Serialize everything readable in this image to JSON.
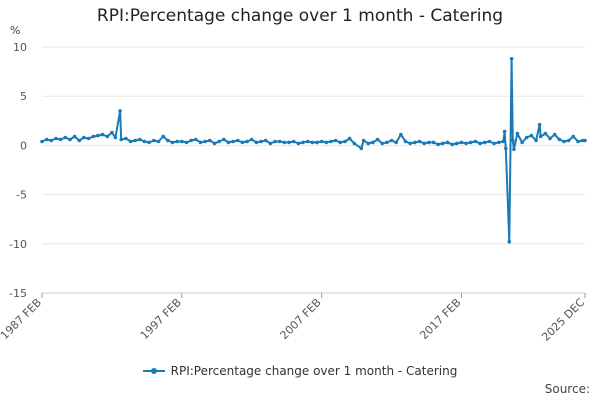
{
  "title": "RPI:Percentage change over 1 month - Catering",
  "unit_label": "%",
  "source_label": "Source:",
  "legend_label": "RPI:Percentage change over 1 month - Catering",
  "colors": {
    "series": "#1a7ab5",
    "grid": "#e6e6e6",
    "axis_text": "#555555"
  },
  "chart_data": {
    "type": "line",
    "title": "RPI:Percentage change over 1 month - Catering",
    "ylabel": "%",
    "xlabel": "",
    "ylim": [
      -15,
      10
    ],
    "yticks": [
      10,
      5,
      0,
      -5,
      -10,
      -15
    ],
    "xlim": [
      "1987 FEB",
      "2025 DEC"
    ],
    "xticks": [
      "1987 FEB",
      "1997 FEB",
      "2007 FEB",
      "2017 FEB",
      "2025 DEC"
    ],
    "grid": true,
    "legend_position": "bottom",
    "series": [
      {
        "name": "RPI:Percentage change over 1 month - Catering",
        "points": [
          [
            "1987 FEB",
            0.4
          ],
          [
            "1987 JUN",
            0.6
          ],
          [
            "1987 OCT",
            0.5
          ],
          [
            "1988 FEB",
            0.7
          ],
          [
            "1988 JUN",
            0.6
          ],
          [
            "1988 OCT",
            0.8
          ],
          [
            "1989 FEB",
            0.6
          ],
          [
            "1989 JUN",
            0.9
          ],
          [
            "1989 OCT",
            0.5
          ],
          [
            "1990 FEB",
            0.8
          ],
          [
            "1990 JUN",
            0.7
          ],
          [
            "1990 OCT",
            0.9
          ],
          [
            "1991 FEB",
            1.0
          ],
          [
            "1991 JUN",
            1.1
          ],
          [
            "1991 OCT",
            0.9
          ],
          [
            "1992 FEB",
            1.3
          ],
          [
            "1992 MAY",
            0.8
          ],
          [
            "1992 SEP",
            3.5
          ],
          [
            "1992 OCT",
            0.6
          ],
          [
            "1993 FEB",
            0.7
          ],
          [
            "1993 JUN",
            0.4
          ],
          [
            "1993 OCT",
            0.5
          ],
          [
            "1994 FEB",
            0.6
          ],
          [
            "1994 JUN",
            0.4
          ],
          [
            "1994 OCT",
            0.3
          ],
          [
            "1995 FEB",
            0.5
          ],
          [
            "1995 JUN",
            0.4
          ],
          [
            "1995 OCT",
            0.9
          ],
          [
            "1996 FEB",
            0.5
          ],
          [
            "1996 JUN",
            0.3
          ],
          [
            "1996 OCT",
            0.4
          ],
          [
            "1997 FEB",
            0.4
          ],
          [
            "1997 JUN",
            0.3
          ],
          [
            "1997 OCT",
            0.5
          ],
          [
            "1998 FEB",
            0.6
          ],
          [
            "1998 JUN",
            0.3
          ],
          [
            "1998 OCT",
            0.4
          ],
          [
            "1999 FEB",
            0.5
          ],
          [
            "1999 JUN",
            0.2
          ],
          [
            "1999 OCT",
            0.4
          ],
          [
            "2000 FEB",
            0.6
          ],
          [
            "2000 JUN",
            0.3
          ],
          [
            "2000 OCT",
            0.4
          ],
          [
            "2001 FEB",
            0.5
          ],
          [
            "2001 JUN",
            0.3
          ],
          [
            "2001 OCT",
            0.4
          ],
          [
            "2002 FEB",
            0.6
          ],
          [
            "2002 JUN",
            0.3
          ],
          [
            "2002 OCT",
            0.4
          ],
          [
            "2003 FEB",
            0.5
          ],
          [
            "2003 JUN",
            0.2
          ],
          [
            "2003 OCT",
            0.4
          ],
          [
            "2004 FEB",
            0.4
          ],
          [
            "2004 JUN",
            0.3
          ],
          [
            "2004 OCT",
            0.3
          ],
          [
            "2005 FEB",
            0.4
          ],
          [
            "2005 JUN",
            0.2
          ],
          [
            "2005 OCT",
            0.3
          ],
          [
            "2006 FEB",
            0.4
          ],
          [
            "2006 JUN",
            0.3
          ],
          [
            "2006 OCT",
            0.3
          ],
          [
            "2007 FEB",
            0.4
          ],
          [
            "2007 JUN",
            0.3
          ],
          [
            "2007 OCT",
            0.4
          ],
          [
            "2008 FEB",
            0.5
          ],
          [
            "2008 JUN",
            0.3
          ],
          [
            "2008 OCT",
            0.4
          ],
          [
            "2009 FEB",
            0.7
          ],
          [
            "2009 JUN",
            0.2
          ],
          [
            "2009 DEC",
            -0.3
          ],
          [
            "2010 FEB",
            0.5
          ],
          [
            "2010 JUN",
            0.2
          ],
          [
            "2010 OCT",
            0.3
          ],
          [
            "2011 FEB",
            0.6
          ],
          [
            "2011 JUN",
            0.2
          ],
          [
            "2011 OCT",
            0.3
          ],
          [
            "2012 FEB",
            0.5
          ],
          [
            "2012 JUN",
            0.3
          ],
          [
            "2012 OCT",
            1.1
          ],
          [
            "2013 FEB",
            0.4
          ],
          [
            "2013 JUN",
            0.2
          ],
          [
            "2013 OCT",
            0.3
          ],
          [
            "2014 FEB",
            0.4
          ],
          [
            "2014 JUN",
            0.2
          ],
          [
            "2014 OCT",
            0.3
          ],
          [
            "2015 FEB",
            0.3
          ],
          [
            "2015 JUN",
            0.1
          ],
          [
            "2015 OCT",
            0.2
          ],
          [
            "2016 FEB",
            0.3
          ],
          [
            "2016 JUN",
            0.1
          ],
          [
            "2016 OCT",
            0.2
          ],
          [
            "2017 FEB",
            0.3
          ],
          [
            "2017 JUN",
            0.2
          ],
          [
            "2017 OCT",
            0.3
          ],
          [
            "2018 FEB",
            0.4
          ],
          [
            "2018 JUN",
            0.2
          ],
          [
            "2018 OCT",
            0.3
          ],
          [
            "2019 FEB",
            0.4
          ],
          [
            "2019 JUN",
            0.2
          ],
          [
            "2019 OCT",
            0.3
          ],
          [
            "2020 FEB",
            0.4
          ],
          [
            "2020 MAR",
            1.4
          ],
          [
            "2020 APR",
            -0.3
          ],
          [
            "2020 JUL",
            -9.8
          ],
          [
            "2020 SEP",
            8.8
          ],
          [
            "2020 OCT",
            0.5
          ],
          [
            "2020 NOV",
            -0.4
          ],
          [
            "2021 FEB",
            1.2
          ],
          [
            "2021 JUN",
            0.3
          ],
          [
            "2021 OCT",
            0.8
          ],
          [
            "2022 FEB",
            1.0
          ],
          [
            "2022 JUN",
            0.5
          ],
          [
            "2022 SEP",
            2.1
          ],
          [
            "2022 OCT",
            0.9
          ],
          [
            "2023 FEB",
            1.2
          ],
          [
            "2023 JUN",
            0.7
          ],
          [
            "2023 OCT",
            1.1
          ],
          [
            "2024 FEB",
            0.6
          ],
          [
            "2024 JUN",
            0.4
          ],
          [
            "2024 OCT",
            0.5
          ],
          [
            "2025 FEB",
            0.9
          ],
          [
            "2025 JUN",
            0.4
          ],
          [
            "2025 OCT",
            0.5
          ],
          [
            "2025 DEC",
            0.5
          ]
        ]
      }
    ]
  }
}
